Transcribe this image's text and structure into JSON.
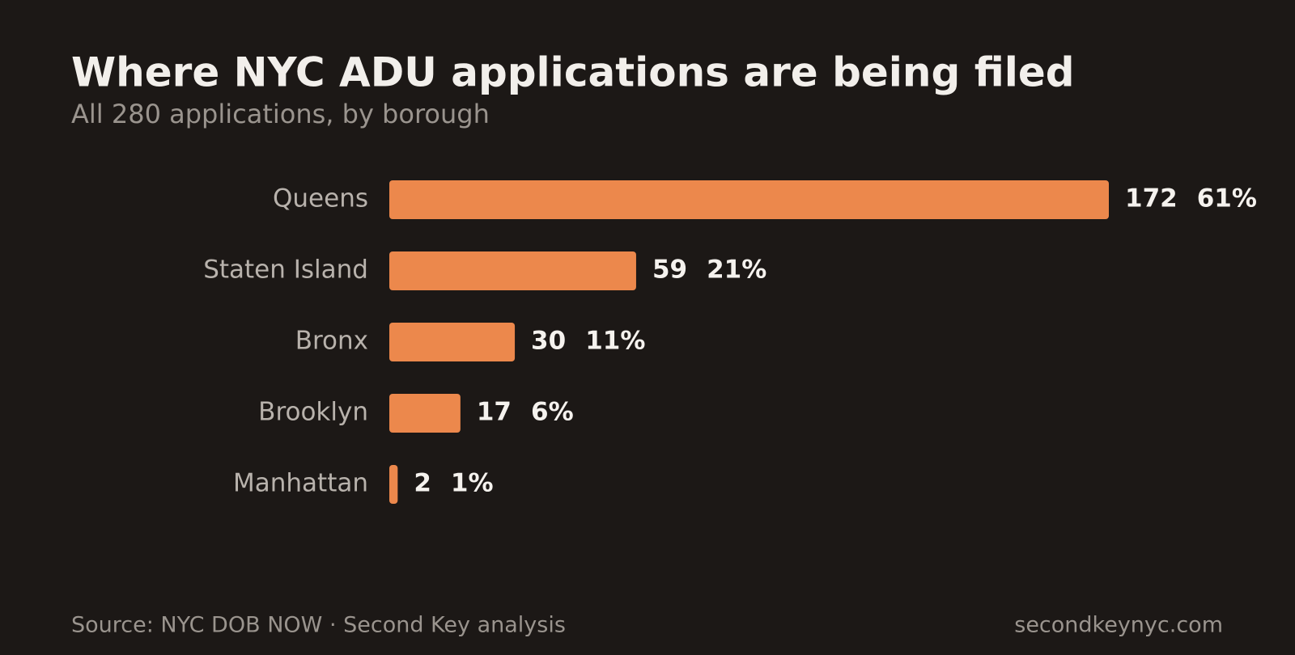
{
  "chart_data": {
    "type": "hbar",
    "title": "Where NYC ADU applications are being filed",
    "subtitle": "All 280 applications, by borough",
    "categories": [
      "Queens",
      "Staten Island",
      "Bronx",
      "Brooklyn",
      "Manhattan"
    ],
    "values": [
      172,
      59,
      30,
      17,
      2
    ],
    "shares": {
      "values": [
        61,
        21,
        11,
        6,
        1
      ],
      "value_labels": [
        "61%",
        "21%",
        "11%",
        "6%",
        "1%"
      ]
    },
    "color": "#ec884c",
    "source": "Source: NYC DOB NOW · Second Key analysis",
    "credit": "secondkeynyc.com"
  }
}
